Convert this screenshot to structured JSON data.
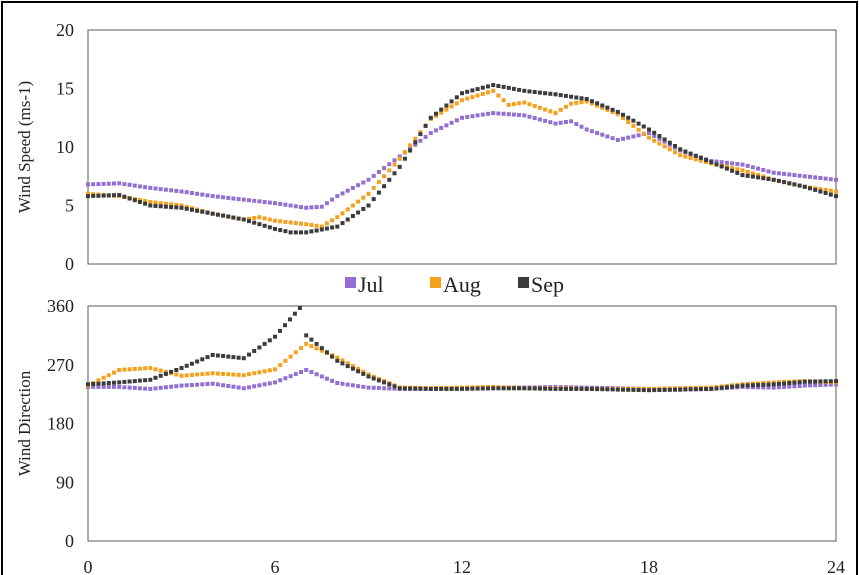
{
  "colors": {
    "Jul": "#9370cf",
    "Aug": "#f5a11d",
    "Sep": "#3b3b3b",
    "frame": "#000000",
    "axis": "#595959"
  },
  "chart_data": [
    {
      "type": "scatter",
      "ylabel": "Wind Speed (ms-1)",
      "xlim": [
        0,
        24
      ],
      "ylim": [
        0,
        20
      ],
      "yticks": [
        0,
        5,
        10,
        15,
        20
      ],
      "ytick_labels": [
        "0",
        "5",
        "10",
        "15",
        "20"
      ],
      "legend": [
        "Jul",
        "Aug",
        "Sep"
      ],
      "legend_position": "bottom",
      "series": [
        {
          "name": "Jul",
          "points": [
            [
              0,
              6.8
            ],
            [
              1,
              6.9
            ],
            [
              2,
              6.5
            ],
            [
              3,
              6.2
            ],
            [
              4,
              5.8
            ],
            [
              5,
              5.5
            ],
            [
              6,
              5.2
            ],
            [
              7,
              4.8
            ],
            [
              7.5,
              4.9
            ],
            [
              8,
              5.8
            ],
            [
              9,
              7.2
            ],
            [
              10,
              9.2
            ],
            [
              11,
              11.2
            ],
            [
              12,
              12.5
            ],
            [
              13,
              12.9
            ],
            [
              14,
              12.7
            ],
            [
              15,
              12.0
            ],
            [
              15.5,
              12.2
            ],
            [
              16,
              11.5
            ],
            [
              17,
              10.6
            ],
            [
              18,
              11.2
            ],
            [
              19,
              9.7
            ],
            [
              20,
              8.8
            ],
            [
              21,
              8.5
            ],
            [
              22,
              7.8
            ],
            [
              23,
              7.5
            ],
            [
              24,
              7.2
            ]
          ]
        },
        {
          "name": "Aug",
          "points": [
            [
              0,
              6.0
            ],
            [
              1,
              5.8
            ],
            [
              2,
              5.3
            ],
            [
              3,
              5.0
            ],
            [
              4,
              4.3
            ],
            [
              5,
              3.8
            ],
            [
              5.5,
              4.0
            ],
            [
              6,
              3.7
            ],
            [
              7,
              3.4
            ],
            [
              7.5,
              3.2
            ],
            [
              8,
              4.0
            ],
            [
              9,
              6.0
            ],
            [
              10,
              9.0
            ],
            [
              11,
              12.4
            ],
            [
              12,
              14.0
            ],
            [
              13,
              14.8
            ],
            [
              13.5,
              13.6
            ],
            [
              14,
              13.8
            ],
            [
              15,
              12.9
            ],
            [
              15.5,
              13.7
            ],
            [
              16,
              13.9
            ],
            [
              17,
              12.8
            ],
            [
              18,
              10.8
            ],
            [
              19,
              9.3
            ],
            [
              20,
              8.6
            ],
            [
              21,
              8.0
            ],
            [
              22,
              7.2
            ],
            [
              23,
              6.6
            ],
            [
              24,
              6.2
            ]
          ]
        },
        {
          "name": "Sep",
          "points": [
            [
              0,
              5.8
            ],
            [
              1,
              5.9
            ],
            [
              2,
              5.0
            ],
            [
              3,
              4.8
            ],
            [
              4,
              4.3
            ],
            [
              5,
              3.8
            ],
            [
              6,
              3.0
            ],
            [
              6.5,
              2.7
            ],
            [
              7,
              2.7
            ],
            [
              8,
              3.2
            ],
            [
              9,
              5.0
            ],
            [
              10,
              8.3
            ],
            [
              11,
              12.5
            ],
            [
              12,
              14.6
            ],
            [
              13,
              15.3
            ],
            [
              14,
              14.8
            ],
            [
              15,
              14.5
            ],
            [
              16,
              14.1
            ],
            [
              17,
              13.0
            ],
            [
              18,
              11.5
            ],
            [
              19,
              9.8
            ],
            [
              20,
              8.7
            ],
            [
              21,
              7.6
            ],
            [
              22,
              7.2
            ],
            [
              23,
              6.6
            ],
            [
              24,
              5.8
            ]
          ]
        }
      ]
    },
    {
      "type": "scatter",
      "xlabel": "",
      "ylabel": "Wind Direction",
      "xlim": [
        0,
        24
      ],
      "ylim": [
        0,
        360
      ],
      "xticks": [
        0,
        6,
        12,
        18,
        24
      ],
      "xtick_labels": [
        "0",
        "6",
        "12",
        "18",
        "24"
      ],
      "yticks": [
        0,
        90,
        180,
        270,
        360
      ],
      "ytick_labels": [
        "0",
        "90",
        "180",
        "270",
        "360"
      ],
      "series": [
        {
          "name": "Jul",
          "points": [
            [
              0,
              236
            ],
            [
              1,
              236
            ],
            [
              2,
              233
            ],
            [
              3,
              238
            ],
            [
              4,
              241
            ],
            [
              5,
              234
            ],
            [
              6,
              243
            ],
            [
              7,
              262
            ],
            [
              8,
              242
            ],
            [
              9,
              235
            ],
            [
              10,
              233
            ],
            [
              11,
              233
            ],
            [
              12,
              234
            ],
            [
              13,
              235
            ],
            [
              14,
              235
            ],
            [
              15,
              236
            ],
            [
              16,
              235
            ],
            [
              17,
              234
            ],
            [
              18,
              233
            ],
            [
              19,
              232
            ],
            [
              20,
              233
            ],
            [
              21,
              236
            ],
            [
              22,
              235
            ],
            [
              23,
              238
            ],
            [
              24,
              240
            ]
          ]
        },
        {
          "name": "Aug",
          "points": [
            [
              0,
              238
            ],
            [
              1,
              262
            ],
            [
              2,
              265
            ],
            [
              3,
              253
            ],
            [
              4,
              257
            ],
            [
              5,
              254
            ],
            [
              6,
              263
            ],
            [
              7,
              302
            ],
            [
              8,
              281
            ],
            [
              9,
              255
            ],
            [
              10,
              235
            ],
            [
              11,
              234
            ],
            [
              12,
              235
            ],
            [
              13,
              236
            ],
            [
              14,
              234
            ],
            [
              15,
              234
            ],
            [
              16,
              233
            ],
            [
              17,
              233
            ],
            [
              18,
              233
            ],
            [
              19,
              234
            ],
            [
              20,
              235
            ],
            [
              21,
              240
            ],
            [
              22,
              243
            ],
            [
              23,
              245
            ],
            [
              24,
              243
            ]
          ]
        },
        {
          "name": "Sep",
          "points": [
            [
              0,
              240
            ],
            [
              1,
              243
            ],
            [
              2,
              247
            ],
            [
              3,
              265
            ],
            [
              4,
              285
            ],
            [
              5,
              280
            ],
            [
              6,
              313
            ],
            [
              6.8,
              357
            ],
            [
              7,
              315
            ],
            [
              8,
              276
            ],
            [
              9,
              252
            ],
            [
              10,
              234
            ],
            [
              11,
              233
            ],
            [
              12,
              233
            ],
            [
              13,
              234
            ],
            [
              14,
              234
            ],
            [
              15,
              233
            ],
            [
              16,
              233
            ],
            [
              17,
              232
            ],
            [
              18,
              231
            ],
            [
              19,
              232
            ],
            [
              20,
              233
            ],
            [
              21,
              238
            ],
            [
              22,
              240
            ],
            [
              23,
              244
            ],
            [
              24,
              245
            ]
          ]
        }
      ]
    }
  ]
}
